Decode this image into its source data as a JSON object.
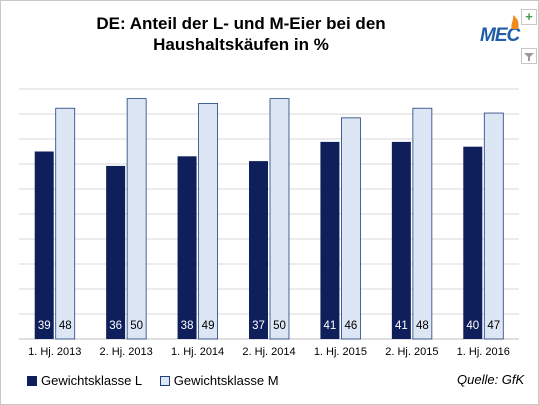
{
  "chart_data": {
    "type": "bar",
    "title": "DE: Anteil der L- und M-Eier bei den Haushaltskäufen in %",
    "categories": [
      "1. Hj. 2013",
      "2. Hj. 2013",
      "1. Hj. 2014",
      "2. Hj. 2014",
      "1. Hj. 2015",
      "2. Hj. 2015",
      "1. Hj. 2016"
    ],
    "series": [
      {
        "name": "Gewichtsklasse L",
        "values": [
          39,
          36,
          38,
          37,
          41,
          41,
          40
        ],
        "color": "#0f1f5c",
        "label_color": "#ffffff"
      },
      {
        "name": "Gewichtsklasse M",
        "values": [
          48,
          50,
          49,
          50,
          46,
          48,
          47
        ],
        "color": "#dce6f4",
        "border": "#1f3f7a",
        "label_color": "#000000"
      }
    ],
    "ylim": [
      0,
      52
    ],
    "gridlines": [
      0,
      52
    ],
    "grid": true,
    "legend": "bottom-left",
    "data_labels": true,
    "source": "Quelle: GfK"
  },
  "logo": {
    "text": "MEC"
  },
  "controls": {
    "expand": "+",
    "filter": "filter-icon"
  }
}
